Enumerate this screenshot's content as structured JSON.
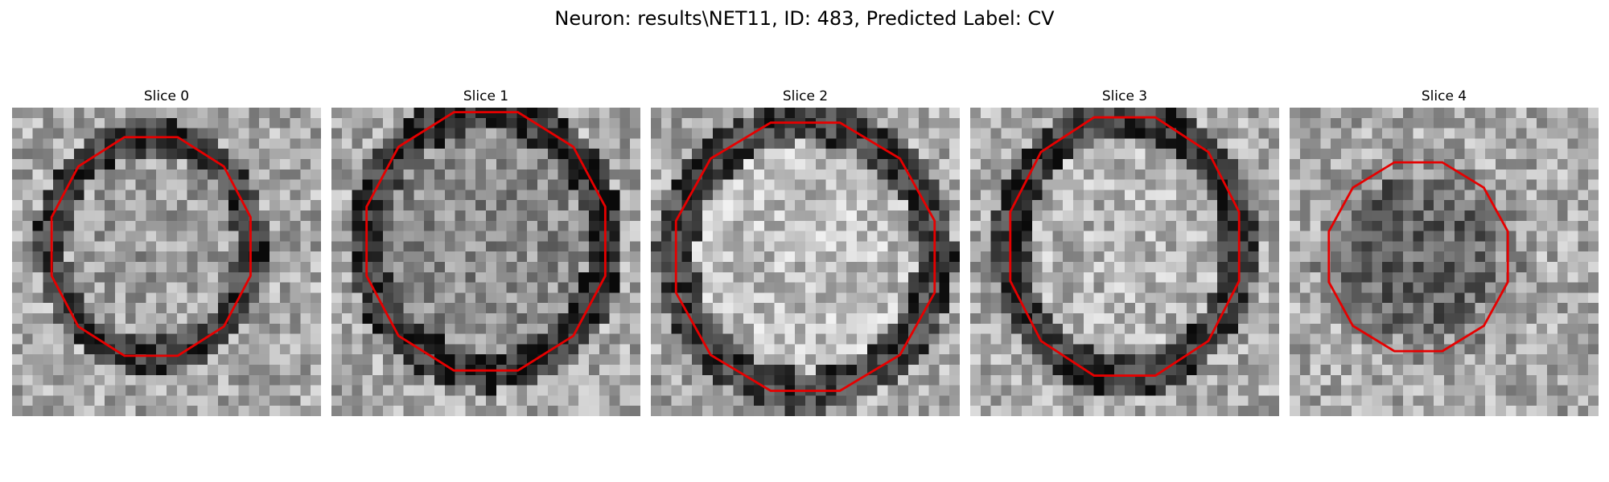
{
  "figure": {
    "title": "Neuron: results\\NET11, ID: 483, Predicted Label: CV"
  },
  "contour_color": "#e60000",
  "colormap": "gray",
  "panels": [
    {
      "title": "Slice 0"
    },
    {
      "title": "Slice 1"
    },
    {
      "title": "Slice 2"
    },
    {
      "title": "Slice 3"
    },
    {
      "title": "Slice 4"
    }
  ]
}
